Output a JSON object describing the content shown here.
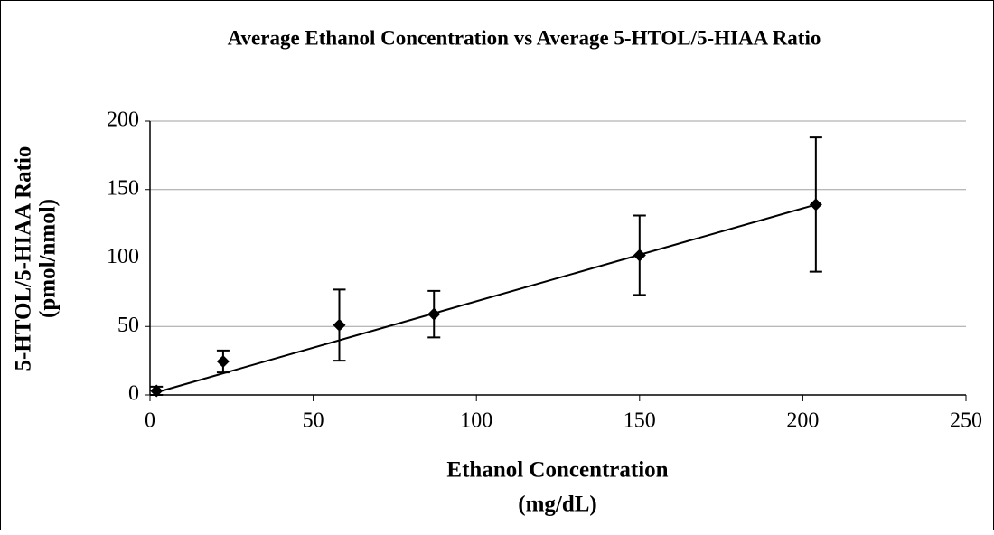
{
  "chart_data": {
    "type": "scatter",
    "title": "Average Ethanol Concentration vs Average 5-HTOL/5-HIAA Ratio",
    "xlabel": [
      "Ethanol Concentration",
      "(mg/dL)"
    ],
    "ylabel": [
      "5-HTOL/5-HIAA Ratio",
      "(pmol/nmol)"
    ],
    "series": [
      {
        "color": "#000000",
        "x": [
          2,
          22.4,
          58,
          87,
          150,
          204
        ],
        "values": [
          3,
          24.4,
          51,
          59,
          102,
          139
        ],
        "errors": [
          3,
          8,
          26,
          17,
          29,
          49
        ]
      }
    ],
    "trendline": {
      "x": [
        2,
        204
      ],
      "values": [
        1.9,
        139
      ]
    },
    "xlim": [
      0,
      250
    ],
    "xticks": [
      0,
      50,
      100,
      150,
      200,
      250
    ],
    "ylim": [
      0,
      200
    ],
    "yticks": [
      0,
      50,
      100,
      150,
      200
    ],
    "grid": true
  }
}
